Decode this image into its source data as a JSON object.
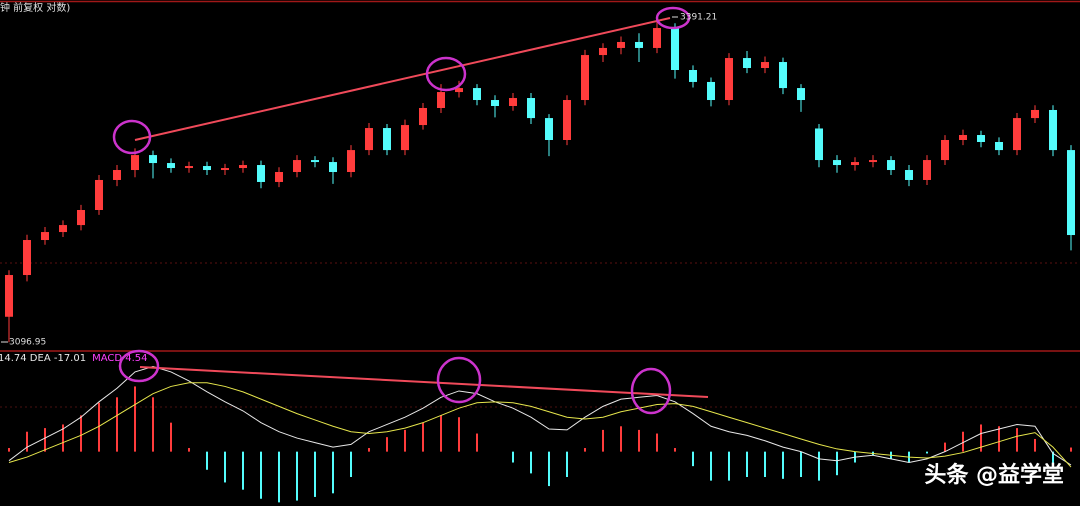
{
  "chart_data": [
    {
      "type": "candlestick",
      "title": "分钟 前复权 对数)",
      "ylim": [
        3090,
        3406
      ],
      "up_color": "#ff3c3c",
      "down_color": "#54fcfc",
      "open": [
        3120,
        3157.7,
        3189.3,
        3196.5,
        3202.8,
        3216.4,
        3243.5,
        3252.5,
        3266.0,
        3258.8,
        3254.3,
        3256.1,
        3252.5,
        3254.3,
        3257.0,
        3241.7,
        3250.7,
        3261.5,
        3259.7,
        3250.7,
        3270.5,
        3290.4,
        3270.5,
        3293.1,
        3308.5,
        3322.9,
        3326.5,
        3315.7,
        3310.3,
        3317.5,
        3299.4,
        3279.6,
        3315.7,
        3356.3,
        3362.7,
        3368.1,
        3362.7,
        3380.7,
        3342.8,
        3332.0,
        3315.7,
        3353.6,
        3344.6,
        3350.0,
        3326.5,
        3290.0,
        3261.5,
        3257.0,
        3259.7,
        3261.5,
        3252.5,
        3243.5,
        3261.5,
        3279.6,
        3284.1,
        3277.8,
        3270.5,
        3299.4,
        3306.7,
        3270.5
      ],
      "high": [
        3162,
        3194,
        3201,
        3207,
        3221,
        3248,
        3257,
        3272,
        3270,
        3263,
        3260,
        3260,
        3258,
        3261,
        3261,
        3255,
        3266,
        3265,
        3264,
        3275,
        3295,
        3294,
        3298,
        3313,
        3330,
        3333,
        3330,
        3320,
        3322,
        3322,
        3303,
        3320,
        3361,
        3367,
        3373,
        3376,
        3391.21,
        3385,
        3347,
        3336,
        3358,
        3360,
        3355,
        3354,
        3330,
        3294,
        3266,
        3264,
        3266,
        3265,
        3257,
        3266,
        3284,
        3289,
        3288,
        3282,
        3304,
        3311,
        3311,
        3275
      ],
      "low": [
        3096.95,
        3152,
        3185,
        3192,
        3198,
        3212,
        3238,
        3246,
        3245,
        3250,
        3250,
        3248,
        3248,
        3250,
        3236,
        3237,
        3246,
        3255,
        3240,
        3246,
        3266,
        3266,
        3266,
        3289,
        3304,
        3318,
        3311,
        3300,
        3306,
        3294,
        3265,
        3275,
        3311,
        3350,
        3357,
        3350,
        3358,
        3335,
        3327,
        3310,
        3311,
        3340,
        3340,
        3321,
        3305,
        3255,
        3250,
        3252,
        3255,
        3248,
        3238,
        3239,
        3257,
        3275,
        3273,
        3266,
        3266,
        3295,
        3265,
        3180
      ],
      "close": [
        3157.7,
        3189.3,
        3196.5,
        3202.8,
        3216.4,
        3243.5,
        3252.5,
        3266.0,
        3258.8,
        3254.3,
        3256.1,
        3252.5,
        3254.3,
        3257.0,
        3241.7,
        3250.7,
        3261.5,
        3259.7,
        3250.7,
        3270.5,
        3290.4,
        3270.5,
        3293.1,
        3308.5,
        3322.9,
        3326.5,
        3315.7,
        3310.3,
        3317.5,
        3299.4,
        3279.6,
        3315.7,
        3356.3,
        3362.7,
        3368.1,
        3362.7,
        3380.7,
        3342.8,
        3332.0,
        3315.7,
        3353.6,
        3344.6,
        3350.0,
        3326.5,
        3315.7,
        3261.5,
        3257.0,
        3259.7,
        3261.5,
        3252.5,
        3243.5,
        3261.5,
        3279.6,
        3284.1,
        3277.8,
        3270.5,
        3299.4,
        3306.7,
        3270.5,
        3193.8
      ]
    },
    {
      "type": "macd",
      "header": [
        {
          "text": "14.74 DEA -17.01",
          "color": "#e8e8e8"
        },
        {
          "text": "MACD 4.54",
          "color": "#ff40ff"
        }
      ],
      "ylim": [
        -60,
        110
      ],
      "up_color": "#ff3c3c",
      "down_color": "#54fcfc",
      "series": [
        {
          "color": "#e8e8e8",
          "values": [
            -10,
            5,
            15,
            25,
            38,
            55,
            70,
            88,
            94,
            88,
            78,
            66,
            55,
            45,
            32,
            22,
            15,
            10,
            5,
            8,
            22,
            30,
            38,
            48,
            60,
            67,
            64,
            55,
            48,
            38,
            25,
            24,
            38,
            50,
            58,
            60,
            62,
            55,
            42,
            28,
            22,
            18,
            12,
            5,
            0,
            -8,
            -10,
            -6,
            -4,
            -8,
            -12,
            -8,
            0,
            10,
            20,
            25,
            30,
            28,
            -2,
            -14.74
          ]
        },
        {
          "color": "#e6e64c",
          "values": [
            -12,
            -6,
            2,
            10,
            18,
            28,
            40,
            52,
            64,
            72,
            76,
            76,
            72,
            66,
            58,
            50,
            42,
            35,
            28,
            22,
            20,
            22,
            26,
            32,
            40,
            48,
            54,
            55,
            54,
            50,
            44,
            38,
            36,
            38,
            44,
            48,
            52,
            53,
            50,
            44,
            38,
            32,
            26,
            20,
            14,
            8,
            3,
            0,
            -2,
            -4,
            -6,
            -7,
            -5,
            -1,
            5,
            11,
            17,
            21,
            5,
            -17.01
          ]
        }
      ],
      "macd": [
        4,
        22,
        26,
        30,
        40,
        54,
        60,
        72,
        60,
        32,
        4,
        -20,
        -34,
        -42,
        -52,
        -56,
        -54,
        -50,
        -46,
        -28,
        4,
        16,
        24,
        32,
        40,
        38,
        20,
        0,
        -12,
        -24,
        -38,
        -28,
        4,
        24,
        28,
        24,
        20,
        4,
        -16,
        -32,
        -32,
        -28,
        -28,
        -30,
        -28,
        -32,
        -26,
        -12,
        -4,
        -8,
        -12,
        -2,
        10,
        22,
        30,
        28,
        26,
        14,
        -14,
        4.54
      ]
    }
  ],
  "watermark": "头条 @益学堂"
}
